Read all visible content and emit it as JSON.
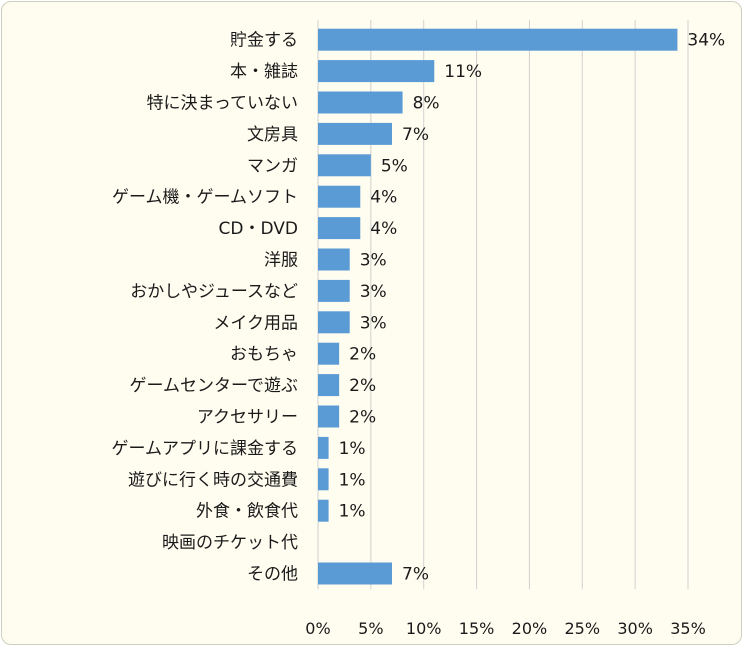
{
  "chart_data": {
    "type": "bar",
    "orientation": "horizontal",
    "categories": [
      "貯金する",
      "本・雑誌",
      "特に決まっていない",
      "文房具",
      "マンガ",
      "ゲーム機・ゲームソフト",
      "CD・DVD",
      "洋服",
      "おかしやジュースなど",
      "メイク用品",
      "おもちゃ",
      "ゲームセンターで遊ぶ",
      "アクセサリー",
      "ゲームアプリに課金する",
      "遊びに行く時の交通費",
      "外食・飲食代",
      "映画のチケット代",
      "その他"
    ],
    "values": [
      34,
      11,
      8,
      7,
      5,
      4,
      4,
      3,
      3,
      3,
      2,
      2,
      2,
      1,
      1,
      1,
      0,
      7
    ],
    "value_labels": [
      "34%",
      "11%",
      "8%",
      "7%",
      "5%",
      "4%",
      "4%",
      "3%",
      "3%",
      "3%",
      "2%",
      "2%",
      "2%",
      "1%",
      "1%",
      "1%",
      "",
      "7%"
    ],
    "xlim": [
      0,
      35
    ],
    "xticks": [
      0,
      5,
      10,
      15,
      20,
      25,
      30,
      35
    ],
    "xtick_labels": [
      "0%",
      "5%",
      "10%",
      "15%",
      "20%",
      "25%",
      "30%",
      "35%"
    ],
    "grid": "vertical",
    "legend": "none",
    "bar_color": "#5b9bd5",
    "grid_color": "#d0d0d0",
    "background": "#fffdf0"
  }
}
